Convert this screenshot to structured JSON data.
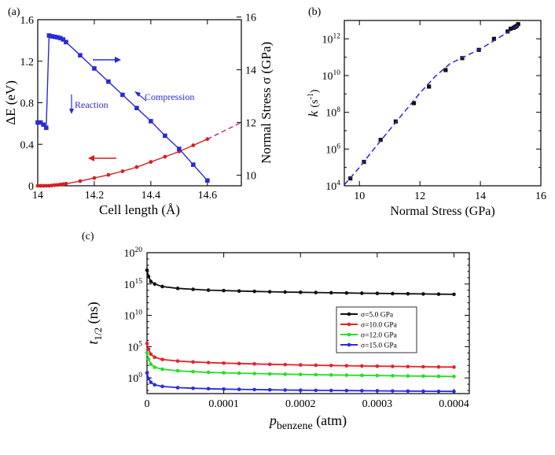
{
  "chart_data": [
    {
      "id": "a",
      "type": "line",
      "panel_label": "(a)",
      "xlabel": "Cell length (Å)",
      "ylabel_left": "ΔE (eV)",
      "ylabel_right": "Normal Stress σ (GPa)",
      "xlim": [
        14.0,
        14.72
      ],
      "ylim_left": [
        0,
        1.6
      ],
      "ylim_right": [
        9.6,
        15.9
      ],
      "x_ticks": [
        14.0,
        14.2,
        14.4,
        14.6
      ],
      "x_tick_labels": [
        "14",
        "14.2",
        "14.4",
        "14.6"
      ],
      "y_ticks_left": [
        0,
        0.4,
        0.8,
        1.2,
        1.6
      ],
      "y_tick_labels_left": [
        "0",
        "0.4",
        "0.8",
        "1.2",
        "1.6"
      ],
      "y_ticks_right": [
        10,
        12,
        14,
        16
      ],
      "y_tick_labels_right": [
        "10",
        "12",
        "14",
        "16"
      ],
      "series": [
        {
          "name": "ΔE",
          "axis": "left",
          "color": "#d42020",
          "x": [
            14.0,
            14.01,
            14.02,
            14.03,
            14.04,
            14.05,
            14.06,
            14.07,
            14.08,
            14.09,
            14.1,
            14.15,
            14.2,
            14.25,
            14.3,
            14.35,
            14.4,
            14.45,
            14.5,
            14.55,
            14.6
          ],
          "values": [
            0.0,
            0.0,
            0.0,
            0.0,
            0.0,
            0.003,
            0.006,
            0.008,
            0.012,
            0.016,
            0.02,
            0.045,
            0.075,
            0.105,
            0.14,
            0.18,
            0.23,
            0.28,
            0.33,
            0.39,
            0.45
          ]
        },
        {
          "name": "ΔE fit",
          "axis": "left",
          "color": "#c02090",
          "dashed": true,
          "x": [
            14.6,
            14.72
          ],
          "values": [
            0.45,
            0.61
          ]
        },
        {
          "name": "Normal Stress",
          "axis": "right",
          "color": "#2a2ad8",
          "x": [
            14.0,
            14.01,
            14.02,
            14.03,
            14.04,
            14.05,
            14.06,
            14.07,
            14.08,
            14.09,
            14.1,
            14.15,
            14.2,
            14.25,
            14.3,
            14.35,
            14.4,
            14.45,
            14.5,
            14.55,
            14.6
          ],
          "values": [
            12.0,
            12.0,
            11.92,
            11.8,
            15.3,
            15.27,
            15.25,
            15.23,
            15.2,
            15.15,
            15.05,
            14.55,
            14.05,
            13.55,
            13.05,
            12.55,
            12.05,
            11.5,
            11.0,
            10.4,
            9.8
          ]
        }
      ],
      "annotations": [
        {
          "text": "Reaction"
        },
        {
          "text": "Compression"
        }
      ]
    },
    {
      "id": "b",
      "type": "scatter",
      "panel_label": "(b)",
      "xlabel": "Normal Stress (GPa)",
      "ylabel": "k",
      "ylabel_unit": "(s",
      "ylabel_unit_exp": "-1",
      "ylabel_unit_close": ")",
      "xlim": [
        9.5,
        16
      ],
      "ylim_log10": [
        4,
        13
      ],
      "x_ticks": [
        10,
        12,
        14,
        16
      ],
      "x_tick_labels": [
        "10",
        "12",
        "14",
        "16"
      ],
      "y_ticks_log10": [
        4,
        6,
        8,
        10,
        12
      ],
      "y_tick_base": "10",
      "y_tick_exps": [
        "4",
        "6",
        "8",
        "10",
        "12"
      ],
      "series": [
        {
          "name": "k",
          "color": "#111111",
          "x": [
            9.7,
            10.15,
            10.7,
            11.2,
            11.8,
            12.3,
            12.85,
            13.4,
            13.95,
            14.45,
            14.9,
            15.0,
            15.1,
            15.15,
            15.2,
            15.25
          ],
          "log10_values": [
            4.4,
            5.3,
            6.5,
            7.5,
            8.5,
            9.4,
            10.3,
            10.95,
            11.4,
            12.0,
            12.4,
            12.55,
            12.6,
            12.65,
            12.7,
            12.8
          ]
        },
        {
          "name": "fit",
          "color": "#2a2ad8",
          "dashed": true,
          "x": [
            9.5,
            10.0,
            10.5,
            11.0,
            11.5,
            12.0,
            12.5,
            13.0,
            13.5,
            14.0,
            14.5,
            15.0,
            15.25
          ],
          "log10_values": [
            4.05,
            5.0,
            6.05,
            7.05,
            8.05,
            9.05,
            9.95,
            10.65,
            11.05,
            11.45,
            11.95,
            12.45,
            12.75
          ]
        }
      ]
    },
    {
      "id": "c",
      "type": "line",
      "panel_label": "(c)",
      "xlabel_main": "p",
      "xlabel_sub": "benzene",
      "xlabel_unit": "(atm)",
      "ylabel_main": "t",
      "ylabel_sub": "1/2",
      "ylabel_unit": "(ns)",
      "xlim": [
        0,
        0.00042
      ],
      "ylim_log10": [
        -2.5,
        20
      ],
      "x_ticks": [
        0,
        0.0001,
        0.0002,
        0.0003,
        0.0004
      ],
      "x_tick_labels": [
        "0",
        "0.0001",
        "0.0002",
        "0.0003",
        "0.0004"
      ],
      "y_ticks_log10": [
        0,
        5,
        10,
        15,
        20
      ],
      "y_tick_base": "10",
      "y_tick_exps": [
        "0",
        "5",
        "10",
        "15",
        "20"
      ],
      "legend": "right",
      "series": [
        {
          "name": "σ=5.0 GPa",
          "color": "#111111",
          "x": [
            0,
            2e-06,
            5e-06,
            1e-05,
            2e-05,
            4e-05,
            6e-05,
            8e-05,
            0.0001,
            0.00012,
            0.00014,
            0.00016,
            0.00018,
            0.0002,
            0.00022,
            0.00024,
            0.00026,
            0.00028,
            0.0003,
            0.00032,
            0.00034,
            0.00036,
            0.00038,
            0.0004
          ],
          "log10_values": [
            17.2,
            16.2,
            15.4,
            15.0,
            14.6,
            14.3,
            14.15,
            14.02,
            13.95,
            13.88,
            13.82,
            13.76,
            13.72,
            13.68,
            13.64,
            13.6,
            13.56,
            13.53,
            13.5,
            13.47,
            13.44,
            13.41,
            13.38,
            13.35
          ]
        },
        {
          "name": "σ=10.0 GPa",
          "color": "#e8202a",
          "x": [
            0,
            2e-06,
            5e-06,
            1e-05,
            2e-05,
            4e-05,
            6e-05,
            8e-05,
            0.0001,
            0.00012,
            0.00014,
            0.00016,
            0.00018,
            0.0002,
            0.00022,
            0.00024,
            0.00026,
            0.00028,
            0.0003,
            0.00032,
            0.00034,
            0.00036,
            0.00038,
            0.0004
          ],
          "log10_values": [
            5.5,
            4.6,
            3.8,
            3.3,
            2.95,
            2.7,
            2.55,
            2.45,
            2.37,
            2.3,
            2.24,
            2.18,
            2.13,
            2.08,
            2.03,
            1.99,
            1.95,
            1.91,
            1.88,
            1.85,
            1.82,
            1.79,
            1.76,
            1.73
          ]
        },
        {
          "name": "σ=12.0 GPa",
          "color": "#22e022",
          "x": [
            0,
            2e-06,
            5e-06,
            1e-05,
            2e-05,
            4e-05,
            6e-05,
            8e-05,
            0.0001,
            0.00012,
            0.00014,
            0.00016,
            0.00018,
            0.0002,
            0.00022,
            0.00024,
            0.00026,
            0.00028,
            0.0003,
            0.00032,
            0.00034,
            0.00036,
            0.00038,
            0.0004
          ],
          "log10_values": [
            4.0,
            3.0,
            2.2,
            1.7,
            1.4,
            1.15,
            1.0,
            0.9,
            0.82,
            0.76,
            0.7,
            0.65,
            0.6,
            0.56,
            0.52,
            0.48,
            0.44,
            0.41,
            0.38,
            0.35,
            0.32,
            0.29,
            0.26,
            0.23
          ]
        },
        {
          "name": "σ=15.0 GPa",
          "color": "#2a2ae0",
          "x": [
            0,
            2e-06,
            5e-06,
            1e-05,
            2e-05,
            4e-05,
            6e-05,
            8e-05,
            0.0001,
            0.00012,
            0.00014,
            0.00016,
            0.00018,
            0.0002,
            0.00022,
            0.00024,
            0.00026,
            0.00028,
            0.0003,
            0.00032,
            0.00034,
            0.00036,
            0.00038,
            0.0004
          ],
          "log10_values": [
            0.8,
            -0.1,
            -0.7,
            -1.1,
            -1.35,
            -1.55,
            -1.65,
            -1.72,
            -1.78,
            -1.82,
            -1.86,
            -1.9,
            -1.93,
            -1.96,
            -1.98,
            -2.0,
            -2.02,
            -2.04,
            -2.06,
            -2.08,
            -2.1,
            -2.12,
            -2.14,
            -2.15
          ]
        }
      ]
    }
  ]
}
